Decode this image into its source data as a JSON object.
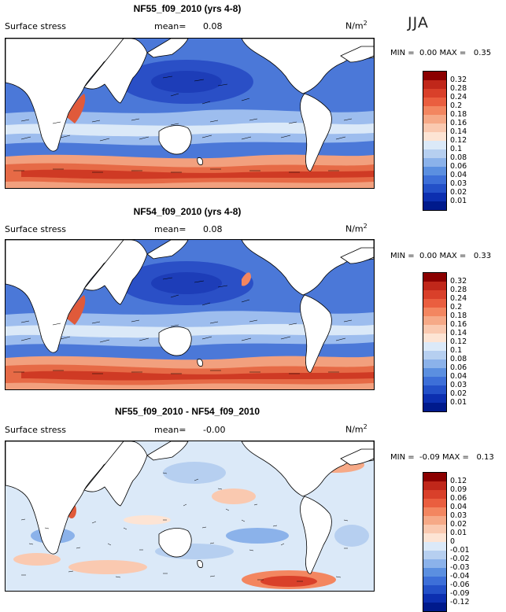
{
  "season": "JJA",
  "units_base": "N/m",
  "units_exp": "2",
  "panels": [
    {
      "title": "NF55_f09_2010 (yrs 4-8)",
      "field": "Surface stress",
      "mean_label": "mean=",
      "mean_value": "0.08",
      "min_label": "MIN =",
      "min_value": "0.00",
      "max_label": "MAX =",
      "max_value": "0.35",
      "colorbar": {
        "levels": [
          "0.32",
          "0.28",
          "0.24",
          "0.2",
          "0.18",
          "0.16",
          "0.14",
          "0.12",
          "0.1",
          "0.08",
          "0.06",
          "0.04",
          "0.03",
          "0.02",
          "0.01"
        ],
        "colors": [
          "#8b0000",
          "#c0271a",
          "#d9402a",
          "#ea5e3f",
          "#f38660",
          "#f6a987",
          "#fac9b0",
          "#fde4d4",
          "#dbe9f8",
          "#b6cff0",
          "#8bb2ea",
          "#5b8fe0",
          "#3d6fd8",
          "#2350c8",
          "#0c2fb0",
          "#001a8c"
        ]
      }
    },
    {
      "title": "NF54_f09_2010 (yrs 4-8)",
      "field": "Surface stress",
      "mean_label": "mean=",
      "mean_value": "0.08",
      "min_label": "MIN =",
      "min_value": "0.00",
      "max_label": "MAX =",
      "max_value": "0.33",
      "colorbar": {
        "levels": [
          "0.32",
          "0.28",
          "0.24",
          "0.2",
          "0.18",
          "0.16",
          "0.14",
          "0.12",
          "0.1",
          "0.08",
          "0.06",
          "0.04",
          "0.03",
          "0.02",
          "0.01"
        ],
        "colors": [
          "#8b0000",
          "#c0271a",
          "#d9402a",
          "#ea5e3f",
          "#f38660",
          "#f6a987",
          "#fac9b0",
          "#fde4d4",
          "#dbe9f8",
          "#b6cff0",
          "#8bb2ea",
          "#5b8fe0",
          "#3d6fd8",
          "#2350c8",
          "#0c2fb0",
          "#001a8c"
        ]
      }
    },
    {
      "title": "NF55_f09_2010 - NF54_f09_2010",
      "field": "Surface stress",
      "mean_label": "mean=",
      "mean_value": "-0.00",
      "min_label": "MIN =",
      "min_value": "-0.09",
      "max_label": "MAX =",
      "max_value": "0.13",
      "colorbar": {
        "levels": [
          "0.12",
          "0.09",
          "0.06",
          "0.04",
          "0.03",
          "0.02",
          "0.01",
          "0",
          "-0.01",
          "-0.02",
          "-0.03",
          "-0.04",
          "-0.06",
          "-0.09",
          "-0.12"
        ],
        "colors": [
          "#8b0000",
          "#c0271a",
          "#d9402a",
          "#ea5e3f",
          "#f38660",
          "#f6a987",
          "#fac9b0",
          "#fde4d4",
          "#dbe9f8",
          "#b6cff0",
          "#8bb2ea",
          "#5b8fe0",
          "#3d6fd8",
          "#2350c8",
          "#0c2fb0",
          "#001a8c"
        ]
      }
    }
  ],
  "chart_data": [
    {
      "type": "heatmap",
      "title": "NF55_f09_2010 (yrs 4-8)",
      "variable": "Surface stress",
      "units": "N/m2",
      "season": "JJA",
      "mean": 0.08,
      "min": 0.0,
      "max": 0.35,
      "contour_levels": [
        0.01,
        0.02,
        0.03,
        0.04,
        0.06,
        0.08,
        0.1,
        0.12,
        0.14,
        0.16,
        0.18,
        0.2,
        0.24,
        0.28,
        0.32
      ]
    },
    {
      "type": "heatmap",
      "title": "NF54_f09_2010 (yrs 4-8)",
      "variable": "Surface stress",
      "units": "N/m2",
      "season": "JJA",
      "mean": 0.08,
      "min": 0.0,
      "max": 0.33,
      "contour_levels": [
        0.01,
        0.02,
        0.03,
        0.04,
        0.06,
        0.08,
        0.1,
        0.12,
        0.14,
        0.16,
        0.18,
        0.2,
        0.24,
        0.28,
        0.32
      ]
    },
    {
      "type": "heatmap",
      "title": "NF55_f09_2010 - NF54_f09_2010",
      "variable": "Surface stress",
      "units": "N/m2",
      "season": "JJA",
      "mean": -0.0,
      "min": -0.09,
      "max": 0.13,
      "contour_levels": [
        -0.12,
        -0.09,
        -0.06,
        -0.04,
        -0.03,
        -0.02,
        -0.01,
        0,
        0.01,
        0.02,
        0.03,
        0.04,
        0.06,
        0.09,
        0.12
      ]
    }
  ]
}
